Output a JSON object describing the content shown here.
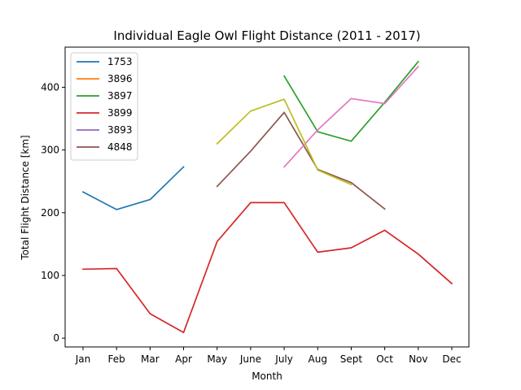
{
  "chart_data": {
    "type": "line",
    "title": "Individual Eagle Owl Flight Distance (2011 - 2017)",
    "xlabel": "Month",
    "ylabel": "Total Flight Distance [km]",
    "categories": [
      "Jan",
      "Feb",
      "Mar",
      "Apr",
      "May",
      "June",
      "July",
      "Aug",
      "Sept",
      "Oct",
      "Nov",
      "Dec"
    ],
    "yticks": [
      0,
      100,
      200,
      300,
      400
    ],
    "ylim": [
      -14,
      464
    ],
    "grid": false,
    "legend_position": "top-left",
    "series": [
      {
        "name": "1753",
        "color": "#1f77b4",
        "legend": true,
        "values": [
          233,
          205,
          221,
          273,
          null,
          null,
          null,
          null,
          null,
          null,
          null,
          null
        ]
      },
      {
        "name": "3896",
        "color": "#ff7f0e",
        "legend": true,
        "values": [
          null,
          null,
          null,
          null,
          null,
          null,
          null,
          null,
          null,
          null,
          null,
          null
        ]
      },
      {
        "name": "3897",
        "color": "#2ca02c",
        "legend": true,
        "values": [
          null,
          null,
          null,
          null,
          null,
          null,
          418,
          329,
          314,
          376,
          441,
          null
        ]
      },
      {
        "name": "3899",
        "color": "#d62728",
        "legend": true,
        "values": [
          110,
          111,
          39,
          9,
          154,
          216,
          216,
          137,
          144,
          172,
          134,
          87
        ]
      },
      {
        "name": "3893",
        "color": "#9467bd",
        "legend": true,
        "values": [
          null,
          null,
          null,
          null,
          null,
          null,
          null,
          null,
          null,
          null,
          null,
          null
        ]
      },
      {
        "name": "4848",
        "color": "#8c564b",
        "legend": true,
        "values": [
          null,
          null,
          null,
          null,
          242,
          298,
          360,
          269,
          248,
          206,
          null,
          null
        ]
      },
      {
        "name": "",
        "color": "#e377c2",
        "legend": false,
        "values": [
          null,
          null,
          null,
          null,
          null,
          null,
          273,
          332,
          382,
          374,
          433,
          null
        ]
      },
      {
        "name": "",
        "color": "#bcbd22",
        "legend": false,
        "values": [
          null,
          null,
          null,
          null,
          310,
          362,
          381,
          268,
          245,
          null,
          null,
          null
        ]
      }
    ]
  }
}
